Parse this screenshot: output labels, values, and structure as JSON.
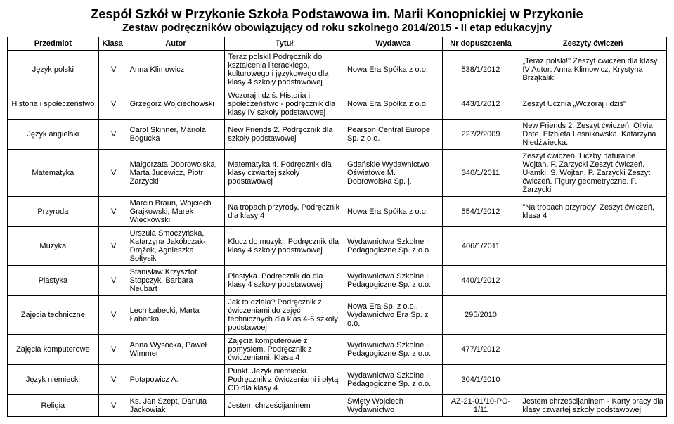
{
  "title": "Zespół Szkół w Przykonie Szkoła Podstawowa im. Marii Konopnickiej w Przykonie",
  "subtitle": "Zestaw podręczników obowiązujący od roku szkolnego 2014/2015 - II etap edukacyjny",
  "headers": {
    "przedmiot": "Przedmiot",
    "klasa": "Klasa",
    "autor": "Autor",
    "tytul": "Tytuł",
    "wydawca": "Wydawca",
    "nr": "Nr dopuszczenia",
    "zeszyty": "Zeszyty ćwiczeń"
  },
  "rows": [
    {
      "przedmiot": "Język polski",
      "klasa": "IV",
      "autor": "Anna Klimowicz",
      "tytul": "Teraz polski! Podręcznik do kształcenia literackiego, kulturowego i językowego dla klasy 4 szkoły podstawowej",
      "wydawca": "Nowa Era Spółka z o.o.",
      "nr": "538/1/2012",
      "zeszyty": "„Teraz polski!\" Zeszyt ćwiczeń dla klasy IV Autor: Anna Klimowicz, Krystyna Brząkalik"
    },
    {
      "przedmiot": "Historia i społeczeństwo",
      "klasa": "IV",
      "autor": "Grzegorz Wojciechowski",
      "tytul": "Wczoraj i dziś. Historia i społeczeństwo - podręcznik dla klasy IV szkoły podstawowej",
      "wydawca": "Nowa Era Spółka z o.o.",
      "nr": "443/1/2012",
      "zeszyty": "Zeszyt Ucznia „Wczoraj i dziś\""
    },
    {
      "przedmiot": "Język angielski",
      "klasa": "IV",
      "autor": "Carol Skinner, Mariola Bogucka",
      "tytul": "New Friends 2. Podręcznik dla szkoły podstawowej",
      "wydawca": "Pearson Central Europe Sp. z o.o.",
      "nr": "227/2/2009",
      "zeszyty": "New Friends 2. Zeszyt ćwiczeń. Olivia Date, Elżbieta Leśnikowska, Katarzyna Niedźwiecka."
    },
    {
      "przedmiot": "Matematyka",
      "klasa": "IV",
      "autor": "Małgorzata Dobrowolska, Marta Jucewicz, Piotr Zarzycki",
      "tytul": "Matematyka 4. Podręcznik dla klasy czwartej szkoły podstawowej",
      "wydawca": "Gdańskie Wydawnictwo Oświatowe M. Dobrowolska Sp. j.",
      "nr": "340/1/2011",
      "zeszyty": "Zeszyt ćwiczeń. Liczby naturalne. Wojtan, P. Zarzycki Zeszyt ćwiczeń. Ułamki. S. Wojtan, P. Zarzycki Zeszyt ćwiczeń. Figury geometryczne. P. Zarzycki"
    },
    {
      "przedmiot": "Przyroda",
      "klasa": "IV",
      "autor": "Marcin Braun, Wojciech Grajkowski, Marek Więckowski",
      "tytul": "Na tropach przyrody. Podręcznik dla klasy 4",
      "wydawca": "Nowa Era Spółka z o.o.",
      "nr": "554/1/2012",
      "zeszyty": "\"Na tropach przyrody\" Zeszyt ćwiczeń, klasa 4"
    },
    {
      "przedmiot": "Muzyka",
      "klasa": "IV",
      "autor": "Urszula Smoczyńska, Katarzyna Jakóbczak-Drążek, Agnieszka Sołtysik",
      "tytul": "Klucz do muzyki. Podręcznik dla klasy 4 szkoły podstawowej",
      "wydawca": "Wydawnictwa Szkolne i Pedagogiczne Sp. z o.o.",
      "nr": "406/1/2011",
      "zeszyty": ""
    },
    {
      "przedmiot": "Plastyka",
      "klasa": "IV",
      "autor": "Stanisław Krzysztof Stopczyk, Barbara Neubart",
      "tytul": "Plastyka. Podręcznik do dla klasy 4 szkoły podstawowej",
      "wydawca": "Wydawnictwa Szkolne i Pedagogiczne Sp. z o.o.",
      "nr": "440/1/2012",
      "zeszyty": ""
    },
    {
      "przedmiot": "Zajęcia techniczne",
      "klasa": "IV",
      "autor": "Lech Łabecki, Marta Łabecka",
      "tytul": "Jak to działa? Podręcznik z ćwiczeniami do zajęć technicznych dla klas 4-6 szkoły podstawoej",
      "wydawca": "Nowa Era Sp. z o.o., Wydawnictwo Era Sp. z o.o.",
      "nr": "295/2010",
      "zeszyty": ""
    },
    {
      "przedmiot": "Zajęcia komputerowe",
      "klasa": "IV",
      "autor": "Anna Wysocka, Paweł Wimmer",
      "tytul": "Zajęcia komputerowe z pomysłem. Podręcznik z ćwiczeniami. Klasa 4",
      "wydawca": "Wydawnictwa Szkolne i Pedagogiczne Sp. z o.o.",
      "nr": "477/1/2012",
      "zeszyty": ""
    },
    {
      "przedmiot": "Język niemiecki",
      "klasa": "IV",
      "autor": "Potapowicz A.",
      "tytul": "Punkt. Jezyk niemiecki. Podręcznik z ćwiczeniami i płytą CD dla klasy 4",
      "wydawca": "Wydawnictwa Szkolne i Pedagogiczne Sp. z o.o.",
      "nr": "304/1/2010",
      "zeszyty": ""
    },
    {
      "przedmiot": "Religia",
      "klasa": "IV",
      "autor": "Ks. Jan Szept, Danuta Jackowiak",
      "tytul": "Jestem chrześcijaninem",
      "wydawca": "Święty Wojciech Wydawnictwo",
      "nr": "AZ-21-01/10-PO-1/11",
      "zeszyty": "Jestem chrześcijaninem - Karty pracy dla klasy czwartej szkoły podstawowej"
    }
  ]
}
